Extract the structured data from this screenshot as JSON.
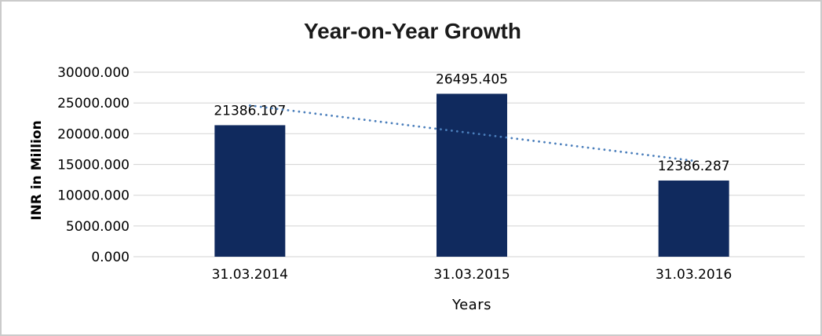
{
  "chart_data": {
    "type": "bar",
    "title": "Year-on-Year Growth",
    "xlabel": "Years",
    "ylabel": "INR in Million",
    "categories": [
      "31.03.2014",
      "31.03.2015",
      "31.03.2016"
    ],
    "values": [
      21386.107,
      26495.405,
      12386.287
    ],
    "data_labels": [
      "21386.107",
      "26495.405",
      "12386.287"
    ],
    "ylim": [
      0,
      30000
    ],
    "ytick_step": 5000,
    "ytick_decimals": 3,
    "grid": true,
    "legend": false,
    "bar_color": "#102a5e",
    "gridline_color": "#d9d9d9",
    "trendline": {
      "type": "linear",
      "style": "dotted",
      "color": "#4a7ebb"
    }
  }
}
